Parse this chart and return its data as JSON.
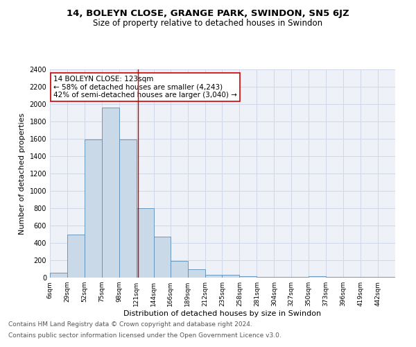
{
  "title1": "14, BOLEYN CLOSE, GRANGE PARK, SWINDON, SN5 6JZ",
  "title2": "Size of property relative to detached houses in Swindon",
  "xlabel": "Distribution of detached houses by size in Swindon",
  "ylabel": "Number of detached properties",
  "footnote1": "Contains HM Land Registry data © Crown copyright and database right 2024.",
  "footnote2": "Contains public sector information licensed under the Open Government Licence v3.0.",
  "annotation_line1": "14 BOLEYN CLOSE: 123sqm",
  "annotation_line2": "← 58% of detached houses are smaller (4,243)",
  "annotation_line3": "42% of semi-detached houses are larger (3,040) →",
  "property_size": 123,
  "bar_edges": [
    6,
    29,
    52,
    75,
    98,
    121,
    144,
    166,
    189,
    212,
    235,
    258,
    281,
    304,
    327,
    350,
    373,
    396,
    419,
    442,
    465
  ],
  "bar_heights": [
    55,
    500,
    1590,
    1960,
    1590,
    800,
    470,
    195,
    95,
    35,
    30,
    20,
    10,
    10,
    5,
    20,
    5,
    5,
    5,
    5
  ],
  "bar_color": "#c9d9e8",
  "bar_edge_color": "#5b8db8",
  "vline_color": "#cc0000",
  "vline_x": 123,
  "ylim": [
    0,
    2400
  ],
  "yticks": [
    0,
    200,
    400,
    600,
    800,
    1000,
    1200,
    1400,
    1600,
    1800,
    2000,
    2200,
    2400
  ],
  "grid_color": "#d0d8e8",
  "bg_color": "#eef2f8",
  "annotation_box_color": "#ffffff",
  "annotation_box_edge": "#cc0000",
  "title1_fontsize": 9.5,
  "title2_fontsize": 8.5,
  "xlabel_fontsize": 8,
  "ylabel_fontsize": 8,
  "annotation_fontsize": 7.5,
  "footnote_fontsize": 6.5
}
